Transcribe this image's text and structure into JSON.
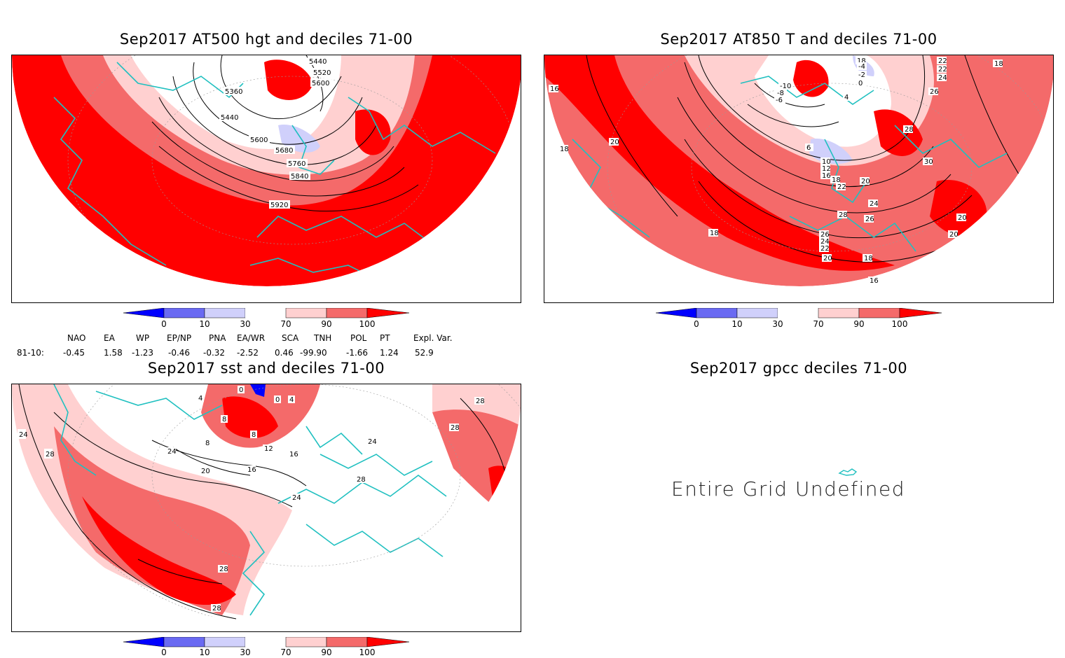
{
  "colors": {
    "very_low": "#0000ff",
    "low": "#6a6af2",
    "below": "#d0d0fb",
    "normal": "#ffffff",
    "above": "#ffd0d0",
    "high": "#f46a6a",
    "very_high": "#ff0000",
    "coast": "#20c0c0",
    "contour": "#000000"
  },
  "colorbar_ticks": [
    "0",
    "10",
    "30",
    "70",
    "90",
    "100"
  ],
  "panels": {
    "hgt500": {
      "title": "Sep2017 AT500 hgt and deciles 71-00",
      "contour_labels": [
        "5440",
        "5520",
        "5600",
        "5360",
        "5440",
        "5600",
        "5680",
        "5760",
        "5840",
        "5920"
      ]
    },
    "t850": {
      "title": "Sep2017 AT850 T and deciles 71-00",
      "contour_labels": [
        "18",
        "16",
        "18",
        "20",
        "-4",
        "-2",
        "0",
        "-10",
        "-8",
        "-6",
        "4",
        "22",
        "22",
        "24",
        "26",
        "18",
        "6",
        "10",
        "12",
        "16",
        "18",
        "22",
        "20",
        "28",
        "30",
        "24",
        "26",
        "28",
        "20",
        "20",
        "18",
        "26",
        "24",
        "22",
        "20",
        "18",
        "16"
      ]
    },
    "sst": {
      "title": "Sep2017 sst and deciles 71-00",
      "contour_labels": [
        "0",
        "28",
        "24",
        "28",
        "24",
        "20",
        "16",
        "8",
        "8",
        "12",
        "16",
        "24",
        "28",
        "28",
        "28",
        "28",
        "4",
        "8",
        "0",
        "4",
        "24"
      ]
    },
    "gpcc": {
      "title": "Sep2017 gpcc deciles 71-00",
      "message": "Entire Grid Undefined"
    }
  },
  "indices": {
    "headers": [
      "NAO",
      "EA",
      "WP",
      "EP/NP",
      "PNA",
      "EA/WR",
      "SCA",
      "TNH",
      "POL",
      "PT",
      "Expl. Var."
    ],
    "row_label": "81-10:",
    "values": [
      "-0.45",
      "1.58",
      "-1.23",
      "-0.46",
      "-0.32",
      "-2.52",
      "0.46",
      "-99.90",
      "-1.66",
      "1.24",
      "52.9"
    ]
  }
}
